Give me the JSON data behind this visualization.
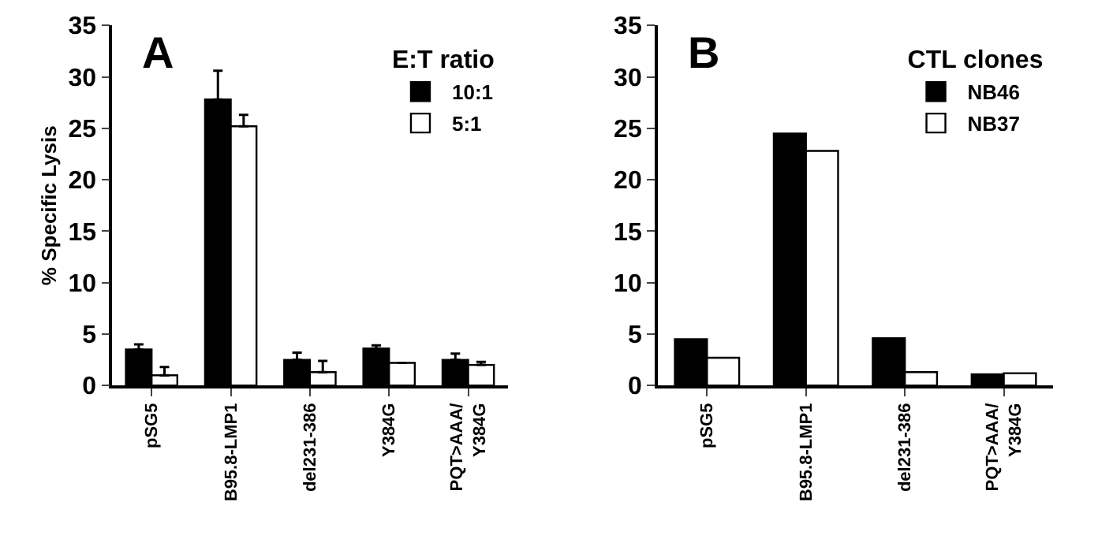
{
  "chart_data": [
    {
      "type": "bar",
      "annotations": [
        "A"
      ],
      "ylabel": "% Specific Lysis",
      "legend_title": "E:T ratio",
      "legend": "top right",
      "categories": [
        "pSG5",
        "B95.8-LMP1",
        "del231-386",
        "Y384G",
        "PQT>AAA/\nY384G"
      ],
      "series": [
        {
          "name": "10:1",
          "color": "#000000",
          "values": [
            3.5,
            27.8,
            2.5,
            3.6,
            2.5
          ],
          "errors": [
            [
              3.5,
              4.0
            ],
            [
              27.8,
              30.6
            ],
            [
              2.5,
              3.2
            ],
            [
              3.6,
              3.9
            ],
            [
              2.5,
              3.1
            ]
          ]
        },
        {
          "name": "5:1",
          "color": "#ffffff",
          "values": [
            1.0,
            25.2,
            1.3,
            2.2,
            2.0
          ],
          "errors": [
            [
              1.0,
              1.8
            ],
            [
              25.2,
              26.3
            ],
            [
              1.3,
              2.4
            ],
            null,
            [
              2.0,
              2.3
            ]
          ]
        }
      ],
      "ylim": [
        0,
        35
      ],
      "yticks": [
        0,
        5,
        10,
        15,
        20,
        25,
        30,
        35
      ]
    },
    {
      "type": "bar",
      "annotations": [
        "B"
      ],
      "legend_title": "CTL clones",
      "legend": "top right",
      "categories": [
        "pSG5",
        "B95.8-LMP1",
        "del231-386",
        "PQT>AAA/\nY384G"
      ],
      "series": [
        {
          "name": "NB46",
          "color": "#000000",
          "values": [
            4.5,
            24.5,
            4.6,
            1.1
          ]
        },
        {
          "name": "NB37",
          "color": "#ffffff",
          "values": [
            2.7,
            22.8,
            1.3,
            1.2
          ]
        }
      ],
      "ylim": [
        0,
        35
      ],
      "yticks": [
        0,
        5,
        10,
        15,
        20,
        25,
        30,
        35
      ]
    }
  ]
}
